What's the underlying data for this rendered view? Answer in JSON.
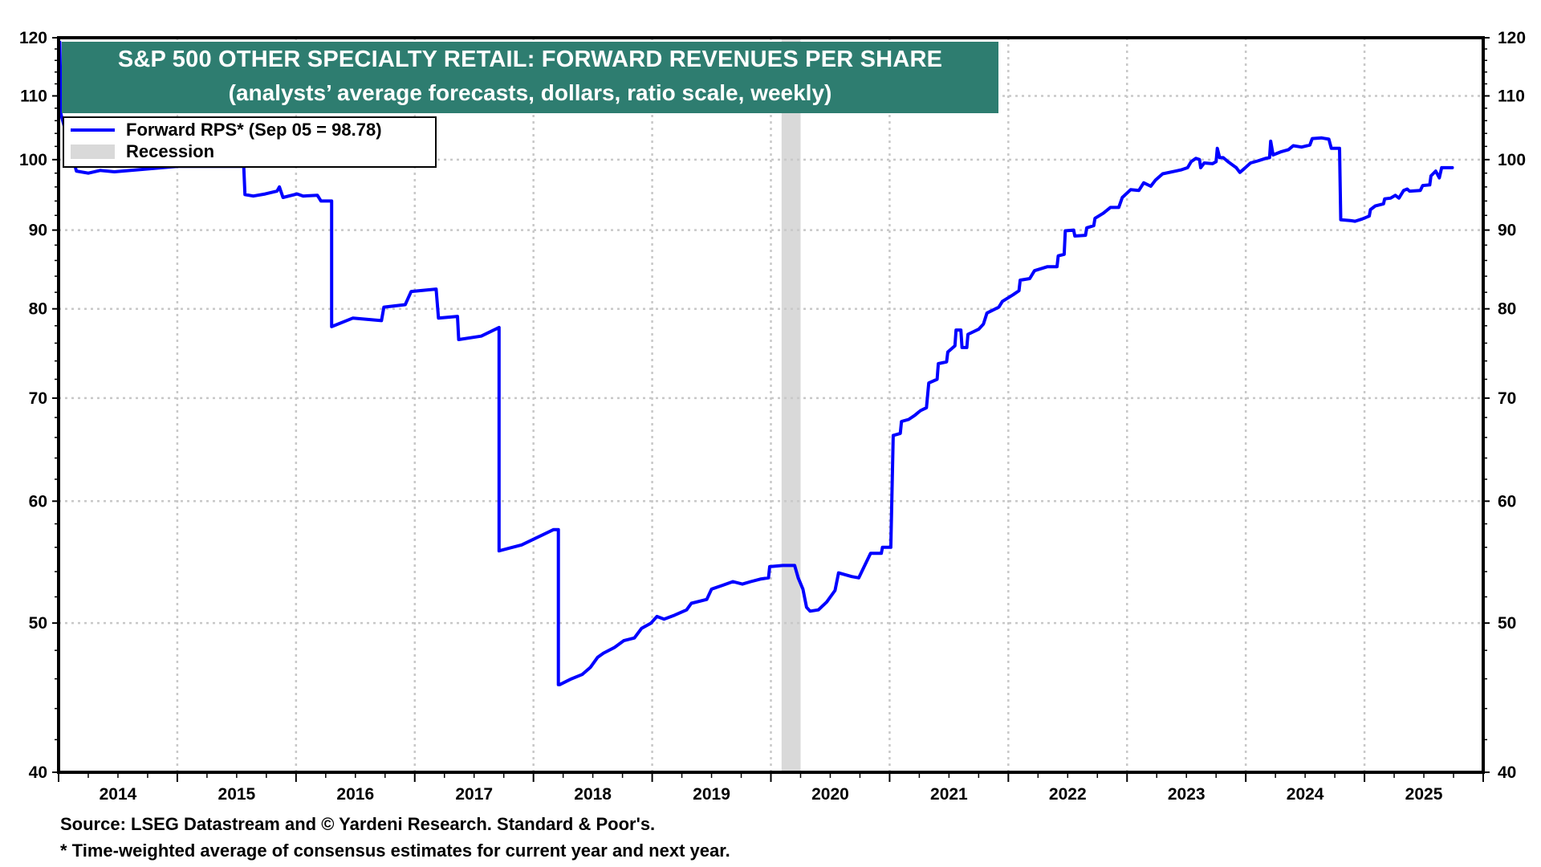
{
  "chart_data": {
    "type": "line",
    "title": "S&P 500 OTHER SPECIALTY RETAIL: FORWARD REVENUES PER SHARE",
    "subtitle": "(analysts’ average forecasts, dollars, ratio scale, weekly)",
    "xlabel": "",
    "ylabel": "",
    "y_scale": "log",
    "ylim": [
      40,
      120
    ],
    "xlim": [
      2014,
      2026
    ],
    "y_ticks": [
      40,
      50,
      60,
      70,
      80,
      90,
      100,
      110,
      120
    ],
    "y_tick_labels": [
      "40",
      "50",
      "60",
      "70",
      "80",
      "90",
      "100",
      "110",
      "120"
    ],
    "x_tick_labels": [
      "2014",
      "2015",
      "2016",
      "2017",
      "2018",
      "2019",
      "2020",
      "2021",
      "2022",
      "2023",
      "2024",
      "2025"
    ],
    "grid": true,
    "legend_position": "top-left",
    "legend": [
      {
        "label": "Forward RPS* (Sep 05 = 98.78)",
        "kind": "line",
        "color": "#0000ff"
      },
      {
        "label": "Recession",
        "kind": "band",
        "color": "#d9d9d9"
      }
    ],
    "recessions": [
      {
        "start": 2020.09,
        "end": 2020.25
      }
    ],
    "series": [
      {
        "name": "Forward RPS",
        "color": "#0000ff",
        "points": [
          [
            2014.01,
            119.2
          ],
          [
            2014.02,
            107.0
          ],
          [
            2014.15,
            98.3
          ],
          [
            2014.25,
            98.0
          ],
          [
            2014.35,
            98.4
          ],
          [
            2014.47,
            98.2
          ],
          [
            2015.0,
            99.0
          ],
          [
            2015.56,
            99.0
          ],
          [
            2015.57,
            94.9
          ],
          [
            2015.64,
            94.7
          ],
          [
            2015.74,
            95.0
          ],
          [
            2015.84,
            95.4
          ],
          [
            2015.86,
            96.0
          ],
          [
            2015.89,
            94.5
          ],
          [
            2016.01,
            95.0
          ],
          [
            2016.06,
            94.7
          ],
          [
            2016.18,
            94.8
          ],
          [
            2016.21,
            94.0
          ],
          [
            2016.3,
            94.0
          ],
          [
            2016.3,
            77.9
          ],
          [
            2016.48,
            78.9
          ],
          [
            2016.72,
            78.6
          ],
          [
            2016.74,
            80.2
          ],
          [
            2016.92,
            80.5
          ],
          [
            2016.97,
            82.1
          ],
          [
            2017.18,
            82.4
          ],
          [
            2017.2,
            78.9
          ],
          [
            2017.36,
            79.1
          ],
          [
            2017.37,
            76.4
          ],
          [
            2017.56,
            76.8
          ],
          [
            2017.71,
            77.8
          ],
          [
            2017.71,
            55.7
          ],
          [
            2017.9,
            56.2
          ],
          [
            2018.17,
            57.5
          ],
          [
            2018.21,
            57.5
          ],
          [
            2018.21,
            45.6
          ],
          [
            2018.22,
            45.6
          ],
          [
            2018.32,
            46.0
          ],
          [
            2018.41,
            46.3
          ],
          [
            2018.48,
            46.8
          ],
          [
            2018.54,
            47.5
          ],
          [
            2018.59,
            47.8
          ],
          [
            2018.68,
            48.2
          ],
          [
            2018.76,
            48.7
          ],
          [
            2018.85,
            48.9
          ],
          [
            2018.91,
            49.6
          ],
          [
            2018.99,
            50.0
          ],
          [
            2019.04,
            50.5
          ],
          [
            2019.1,
            50.3
          ],
          [
            2019.19,
            50.6
          ],
          [
            2019.29,
            51.0
          ],
          [
            2019.33,
            51.5
          ],
          [
            2019.46,
            51.8
          ],
          [
            2019.5,
            52.6
          ],
          [
            2019.59,
            52.9
          ],
          [
            2019.68,
            53.2
          ],
          [
            2019.76,
            53.0
          ],
          [
            2019.83,
            53.2
          ],
          [
            2019.91,
            53.4
          ],
          [
            2019.98,
            53.5
          ],
          [
            2019.99,
            54.4
          ],
          [
            2020.1,
            54.5
          ],
          [
            2020.2,
            54.5
          ],
          [
            2020.23,
            53.5
          ],
          [
            2020.27,
            52.6
          ],
          [
            2020.3,
            51.2
          ],
          [
            2020.33,
            50.9
          ],
          [
            2020.4,
            51.0
          ],
          [
            2020.47,
            51.6
          ],
          [
            2020.54,
            52.5
          ],
          [
            2020.57,
            53.9
          ],
          [
            2020.68,
            53.6
          ],
          [
            2020.74,
            53.5
          ],
          [
            2020.79,
            54.5
          ],
          [
            2020.84,
            55.5
          ],
          [
            2020.93,
            55.5
          ],
          [
            2020.94,
            56.0
          ],
          [
            2021.01,
            56.0
          ],
          [
            2021.03,
            66.2
          ],
          [
            2021.09,
            66.4
          ],
          [
            2021.1,
            67.6
          ],
          [
            2021.16,
            67.8
          ],
          [
            2021.21,
            68.2
          ],
          [
            2021.26,
            68.7
          ],
          [
            2021.31,
            69.0
          ],
          [
            2021.33,
            71.6
          ],
          [
            2021.4,
            72.0
          ],
          [
            2021.41,
            73.7
          ],
          [
            2021.48,
            73.9
          ],
          [
            2021.49,
            75.0
          ],
          [
            2021.55,
            75.7
          ],
          [
            2021.56,
            77.5
          ],
          [
            2021.6,
            77.5
          ],
          [
            2021.61,
            75.5
          ],
          [
            2021.65,
            75.5
          ],
          [
            2021.66,
            77.0
          ],
          [
            2021.75,
            77.6
          ],
          [
            2021.79,
            78.2
          ],
          [
            2021.82,
            79.5
          ],
          [
            2021.92,
            80.2
          ],
          [
            2021.95,
            80.9
          ],
          [
            2022.04,
            81.7
          ],
          [
            2022.09,
            82.2
          ],
          [
            2022.1,
            83.5
          ],
          [
            2022.18,
            83.7
          ],
          [
            2022.22,
            84.7
          ],
          [
            2022.33,
            85.2
          ],
          [
            2022.41,
            85.2
          ],
          [
            2022.42,
            86.6
          ],
          [
            2022.47,
            86.8
          ],
          [
            2022.48,
            89.9
          ],
          [
            2022.55,
            90.0
          ],
          [
            2022.56,
            89.2
          ],
          [
            2022.65,
            89.3
          ],
          [
            2022.66,
            90.3
          ],
          [
            2022.72,
            90.6
          ],
          [
            2022.73,
            91.6
          ],
          [
            2022.8,
            92.3
          ],
          [
            2022.86,
            93.1
          ],
          [
            2022.93,
            93.1
          ],
          [
            2022.96,
            94.5
          ],
          [
            2023.03,
            95.6
          ],
          [
            2023.1,
            95.5
          ],
          [
            2023.14,
            96.6
          ],
          [
            2023.2,
            96.1
          ],
          [
            2023.24,
            97.0
          ],
          [
            2023.3,
            97.9
          ],
          [
            2023.41,
            98.3
          ],
          [
            2023.46,
            98.5
          ],
          [
            2023.51,
            98.8
          ],
          [
            2023.54,
            99.7
          ],
          [
            2023.58,
            100.2
          ],
          [
            2023.61,
            100.0
          ],
          [
            2023.62,
            98.8
          ],
          [
            2023.65,
            99.5
          ],
          [
            2023.72,
            99.4
          ],
          [
            2023.75,
            99.7
          ],
          [
            2023.76,
            101.7
          ],
          [
            2023.78,
            100.3
          ],
          [
            2023.81,
            100.3
          ],
          [
            2023.85,
            99.7
          ],
          [
            2023.92,
            98.8
          ],
          [
            2023.95,
            98.1
          ],
          [
            2023.99,
            98.7
          ],
          [
            2024.04,
            99.5
          ],
          [
            2024.1,
            99.8
          ],
          [
            2024.17,
            100.2
          ],
          [
            2024.2,
            100.3
          ],
          [
            2024.21,
            102.8
          ],
          [
            2024.23,
            100.7
          ],
          [
            2024.3,
            101.2
          ],
          [
            2024.36,
            101.5
          ],
          [
            2024.4,
            102.1
          ],
          [
            2024.47,
            101.9
          ],
          [
            2024.54,
            102.2
          ],
          [
            2024.56,
            103.2
          ],
          [
            2024.64,
            103.3
          ],
          [
            2024.7,
            103.1
          ],
          [
            2024.72,
            101.7
          ],
          [
            2024.79,
            101.7
          ],
          [
            2024.8,
            91.4
          ],
          [
            2024.88,
            91.3
          ],
          [
            2024.92,
            91.2
          ],
          [
            2024.98,
            91.5
          ],
          [
            2025.04,
            91.9
          ],
          [
            2025.05,
            92.8
          ],
          [
            2025.09,
            93.3
          ],
          [
            2025.16,
            93.6
          ],
          [
            2025.17,
            94.3
          ],
          [
            2025.22,
            94.4
          ],
          [
            2025.26,
            94.8
          ],
          [
            2025.29,
            94.4
          ],
          [
            2025.33,
            95.5
          ],
          [
            2025.36,
            95.7
          ],
          [
            2025.38,
            95.4
          ],
          [
            2025.47,
            95.5
          ],
          [
            2025.49,
            96.2
          ],
          [
            2025.55,
            96.3
          ],
          [
            2025.56,
            97.6
          ],
          [
            2025.6,
            98.3
          ],
          [
            2025.63,
            97.3
          ],
          [
            2025.65,
            98.8
          ],
          [
            2025.68,
            98.8
          ],
          [
            2025.74,
            98.8
          ]
        ]
      }
    ]
  },
  "title_box": {
    "line1": "S&P 500 OTHER SPECIALTY RETAIL: FORWARD REVENUES PER SHARE",
    "line2": "(analysts’ average forecasts, dollars, ratio scale, weekly)",
    "background": "#2e7d70"
  },
  "legend": {
    "series_label": "Forward RPS* (Sep 05 = 98.78)",
    "recession_label": "Recession"
  },
  "footer": {
    "source": "Source: LSEG Datastream and © Yardeni Research. Standard & Poor's.",
    "note": "* Time-weighted average of consensus estimates for current year and next year."
  }
}
